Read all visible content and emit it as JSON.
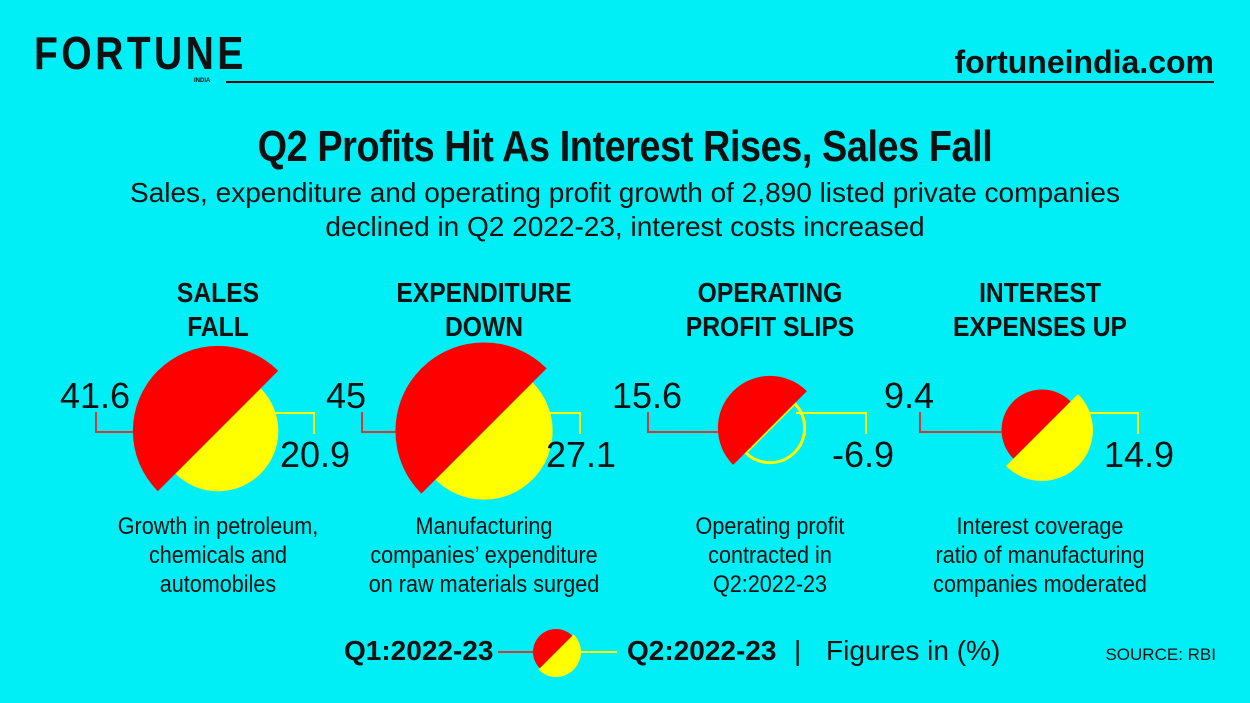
{
  "brand": {
    "logo": "FORTUNE",
    "logo_sub": "INDIA",
    "site": "fortuneindia.com"
  },
  "title": "Q2 Profits Hit As Interest Rises, Sales Fall",
  "subtitle_line1": "Sales, expenditure and operating profit growth of 2,890 listed private companies",
  "subtitle_line2": "declined in Q2 2022-23, interest costs increased",
  "colors": {
    "background": "#00eef6",
    "q1": "#ff0000",
    "q2": "#ffff00"
  },
  "chart_data": {
    "type": "pie",
    "series_names": [
      "Q1:2022-23",
      "Q2:2022-23"
    ],
    "unit": "%",
    "panels": [
      {
        "heading1": "SALES",
        "heading2": "FALL",
        "q1": 41.6,
        "q2": 20.9,
        "q1_label": "41.6",
        "q2_label": "20.9",
        "desc": [
          "Growth in petroleum,",
          "chemicals and",
          "automobiles"
        ]
      },
      {
        "heading1": "EXPENDITURE",
        "heading2": "DOWN",
        "q1": 45,
        "q2": 27.1,
        "q1_label": "45",
        "q2_label": "27.1",
        "desc": [
          "Manufacturing",
          "companies’ expenditure",
          "on raw materials surged"
        ]
      },
      {
        "heading1": "OPERATING",
        "heading2": "PROFIT SLIPS",
        "q1": 15.6,
        "q2": -6.9,
        "q1_label": "15.6",
        "q2_label": "-6.9",
        "desc": [
          "Operating profit",
          "contracted in",
          "Q2:2022-23"
        ]
      },
      {
        "heading1": "INTEREST",
        "heading2": "EXPENSES UP",
        "q1": 9.4,
        "q2": 14.9,
        "q1_label": "9.4",
        "q2_label": "14.9",
        "desc": [
          "Interest coverage",
          "ratio of manufacturing",
          "companies moderated"
        ]
      }
    ]
  },
  "legend": {
    "q1": "Q1:2022-23",
    "q2": "Q2:2022-23",
    "sep": "|",
    "note": "Figures in (%)"
  },
  "source": "SOURCE: RBI"
}
